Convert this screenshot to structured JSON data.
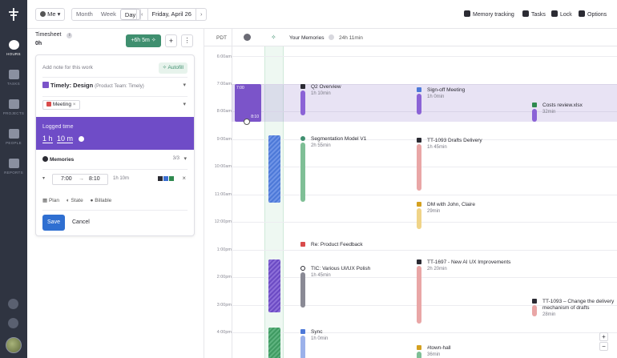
{
  "nav": {
    "items": [
      {
        "label": "HOURS",
        "icon": "clock-icon",
        "active": true
      },
      {
        "label": "TASKS",
        "icon": "clipboard-icon"
      },
      {
        "label": "PROJECTS",
        "icon": "briefcase-icon"
      },
      {
        "label": "PEOPLE",
        "icon": "people-icon"
      },
      {
        "label": "REPORTS",
        "icon": "bar-chart-icon"
      }
    ]
  },
  "topbar": {
    "user": "Me",
    "views": [
      "Month",
      "Week",
      "Day"
    ],
    "active_view": "Day",
    "date": "Friday, April 26",
    "memory_tracking": "Memory tracking",
    "tasks": "Tasks",
    "lock": "Lock",
    "options": "Options"
  },
  "timesheet": {
    "title": "Timesheet",
    "total": "0h",
    "add_button": "+6h 5m",
    "note_placeholder": "Add note for this work",
    "autofill": "Autofill",
    "project": "Timely: Design",
    "project_sub": "(Product Team: Timely)",
    "tag": "Meeting",
    "logged_label": "Logged time",
    "logged_h": "1 h",
    "logged_m": "10 m",
    "memories_label": "Memories",
    "memories_count": "3/3",
    "start": "7:00",
    "end": "8:10",
    "duration": "1h 10m",
    "plan": "Plan",
    "state": "State",
    "billable": "Billable",
    "save": "Save",
    "cancel": "Cancel"
  },
  "calendar": {
    "tz": "PDT",
    "memories_title": "Your Memories",
    "memories_total": "24h 11min",
    "hours": [
      "6:00am",
      "7:00am",
      "8:00am",
      "9:00am",
      "10:00am",
      "11:00am",
      "12:00pm",
      "1:00pm",
      "2:00pm",
      "3:00pm",
      "4:00pm"
    ],
    "logged_block": {
      "start": "7:00",
      "end": "8:10"
    },
    "events": [
      {
        "title": "Q2 Overview",
        "duration": "1h 10min"
      },
      {
        "title": "Sign-off Meeting",
        "duration": "1h 0min"
      },
      {
        "title": "Costs review.xlsx",
        "duration": "32min"
      },
      {
        "title": "Segmentation Model V1",
        "duration": "2h 55min"
      },
      {
        "title": "TT-1093 Drafts Delivery",
        "duration": "1h 45min"
      },
      {
        "title": "DM with John, Claire",
        "duration": "29min"
      },
      {
        "title": "Re: Product Feedback",
        "duration": ""
      },
      {
        "title": "TIC: Various UI/UX Polish",
        "duration": "1h 45min"
      },
      {
        "title": "TT-1697 - New AI UX Improvements",
        "duration": "2h 20min"
      },
      {
        "title": "TT-1093 – Change the delivery",
        "title2": "mechanism of drafts",
        "duration": "28min"
      },
      {
        "title": "Sync",
        "duration": "1h 0min"
      },
      {
        "title": "#town-hall",
        "duration": "36min"
      }
    ]
  }
}
